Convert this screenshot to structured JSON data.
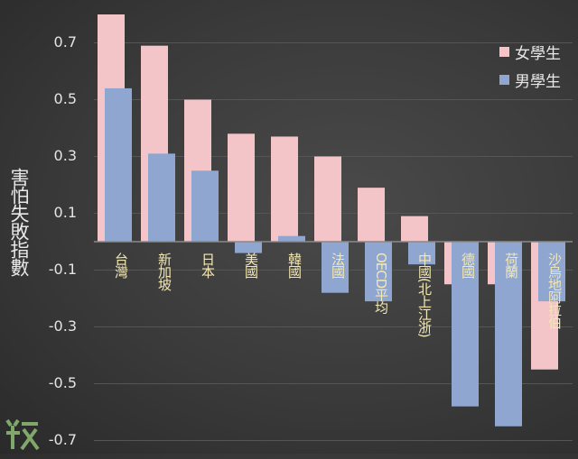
{
  "chart_data": {
    "type": "bar",
    "title": "",
    "xlabel": "",
    "ylabel": "害怕失敗指數",
    "ylim": [
      -0.7,
      0.8
    ],
    "yticks": [
      "0.7",
      "0.5",
      "0.3",
      "0.1",
      "-0.1",
      "-0.3",
      "-0.5",
      "-0.7"
    ],
    "grid": true,
    "legend_position": "top-right",
    "categories": [
      "台灣",
      "新加坡",
      "日本",
      "美國",
      "韓國",
      "法國",
      "OECD平均",
      "中國(北上江浙)",
      "德國",
      "荷蘭",
      "沙烏地阿拉伯"
    ],
    "series": [
      {
        "name": "女學生",
        "color": "#f4c5c8",
        "values": [
          0.8,
          0.69,
          0.5,
          0.38,
          0.37,
          0.3,
          0.19,
          0.09,
          -0.15,
          -0.15,
          -0.45
        ]
      },
      {
        "name": "男學生",
        "color": "#8fa6d0",
        "values": [
          0.54,
          0.31,
          0.25,
          -0.04,
          0.02,
          -0.18,
          -0.21,
          -0.08,
          -0.58,
          -0.65,
          -0.21
        ]
      }
    ]
  },
  "logo_text": "数"
}
